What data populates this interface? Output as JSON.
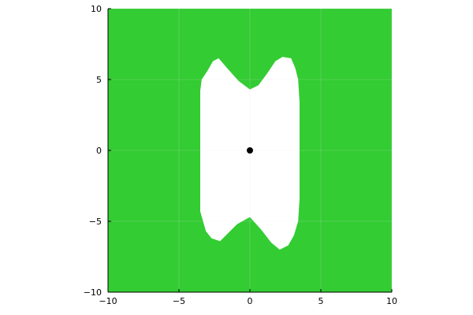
{
  "chart_data": {
    "type": "heatmap",
    "title": "",
    "xlabel": "",
    "ylabel": "",
    "xlim": [
      -10,
      10
    ],
    "ylim": [
      -10,
      10
    ],
    "xticks": [
      -10,
      -5,
      0,
      5,
      10
    ],
    "yticks": [
      -10,
      -5,
      0,
      5,
      10
    ],
    "xtick_labels": [
      "−10",
      "−5",
      "0",
      "5",
      "10"
    ],
    "ytick_labels": [
      "−10",
      "−5",
      "0",
      "5",
      "10"
    ],
    "grid": true,
    "legend": "none",
    "colors": {
      "region_fill": "#33cc33",
      "feasible_fill": "#ffffff",
      "point": "#000000",
      "grid": "#e6e6e6"
    },
    "feasible_region_outline": [
      [
        -3.5,
        4.2
      ],
      [
        -3.4,
        5.0
      ],
      [
        -3.0,
        5.6
      ],
      [
        -2.6,
        6.3
      ],
      [
        -2.2,
        6.5
      ],
      [
        -1.6,
        5.8
      ],
      [
        -0.8,
        4.9
      ],
      [
        0.0,
        4.3
      ],
      [
        0.6,
        4.6
      ],
      [
        1.2,
        5.4
      ],
      [
        1.8,
        6.3
      ],
      [
        2.3,
        6.6
      ],
      [
        2.9,
        6.5
      ],
      [
        3.2,
        5.8
      ],
      [
        3.4,
        5.0
      ],
      [
        3.5,
        3.4
      ],
      [
        3.5,
        -3.4
      ],
      [
        3.4,
        -5.0
      ],
      [
        3.1,
        -6.0
      ],
      [
        2.7,
        -6.7
      ],
      [
        2.1,
        -7.0
      ],
      [
        1.5,
        -6.5
      ],
      [
        0.8,
        -5.6
      ],
      [
        0.0,
        -4.7
      ],
      [
        -0.9,
        -5.2
      ],
      [
        -1.5,
        -5.8
      ],
      [
        -2.1,
        -6.4
      ],
      [
        -2.7,
        -6.2
      ],
      [
        -3.1,
        -5.7
      ],
      [
        -3.5,
        -4.3
      ]
    ],
    "points": [
      {
        "x": 0,
        "y": 0
      }
    ]
  }
}
